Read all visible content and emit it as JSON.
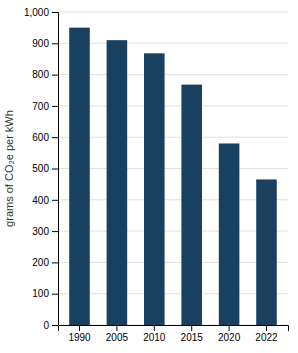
{
  "chart_data": {
    "type": "bar",
    "categories": [
      "1990",
      "2005",
      "2010",
      "2015",
      "2020",
      "2022"
    ],
    "values": [
      950,
      910,
      868,
      768,
      580,
      465
    ],
    "color": "#1a4060",
    "ylabel": "grams of CO₂e per kWh",
    "ylim": [
      0,
      1000
    ],
    "yticks": [
      0,
      100,
      200,
      300,
      400,
      500,
      600,
      700,
      800,
      900,
      {
        "value": 1000,
        "label": "1,000"
      }
    ],
    "grid": true
  }
}
